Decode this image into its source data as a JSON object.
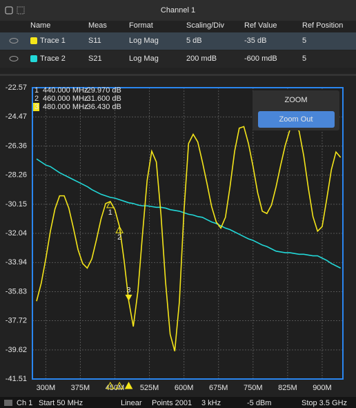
{
  "header": {
    "title": "Channel 1"
  },
  "table": {
    "columns": [
      "Name",
      "Meas",
      "Format",
      "Scaling/Div",
      "Ref Value",
      "Ref Position"
    ],
    "rows": [
      {
        "color": "#f5e61a",
        "selected": true,
        "cells": [
          "Trace 1",
          "S11",
          "Log Mag",
          "5 dB",
          "-35 dB",
          "5"
        ]
      },
      {
        "color": "#22d8d8",
        "selected": false,
        "cells": [
          "Trace 2",
          "S21",
          "Log Mag",
          "200 mdB",
          "-600 mdB",
          "5"
        ]
      }
    ]
  },
  "chart_data": {
    "type": "line",
    "x": [
      280000000,
      290000000,
      300000000,
      310000000,
      320000000,
      330000000,
      340000000,
      350000000,
      360000000,
      370000000,
      380000000,
      390000000,
      400000000,
      410000000,
      420000000,
      430000000,
      440000000,
      450000000,
      460000000,
      470000000,
      480000000,
      490000000,
      500000000,
      510000000,
      520000000,
      530000000,
      540000000,
      550000000,
      560000000,
      570000000,
      580000000,
      590000000,
      600000000,
      610000000,
      620000000,
      630000000,
      640000000,
      650000000,
      660000000,
      670000000,
      680000000,
      690000000,
      700000000,
      710000000,
      720000000,
      730000000,
      740000000,
      750000000,
      760000000,
      770000000,
      780000000,
      790000000,
      800000000,
      810000000,
      820000000,
      830000000,
      840000000,
      850000000,
      860000000,
      870000000,
      880000000,
      890000000,
      900000000,
      910000000,
      920000000,
      930000000,
      940000000
    ],
    "series": [
      {
        "color": "#f5e61a",
        "values": [
          -36.45,
          -35.3,
          -33.7,
          -31.9,
          -30.45,
          -29.6,
          -29.6,
          -30.4,
          -31.7,
          -33.1,
          -34.0,
          -34.3,
          -33.7,
          -32.45,
          -31.1,
          -30.1,
          -29.97,
          -30.5,
          -31.6,
          -33.8,
          -36.43,
          -38.1,
          -35.8,
          -32.1,
          -28.6,
          -26.7,
          -27.4,
          -30.8,
          -35.2,
          -38.6,
          -39.7,
          -36.5,
          -30.6,
          -26.2,
          -25.6,
          -26.1,
          -27.4,
          -28.8,
          -30.3,
          -31.3,
          -31.7,
          -31.0,
          -29.0,
          -26.7,
          -25.2,
          -25.1,
          -26.2,
          -27.7,
          -29.4,
          -30.6,
          -30.75,
          -30.2,
          -29.0,
          -27.6,
          -26.3,
          -25.3,
          -25.0,
          -25.4,
          -27.0,
          -29.1,
          -30.95,
          -31.9,
          -31.6,
          -29.8,
          -27.9,
          -26.75,
          -27.1
        ]
      },
      {
        "color": "#22d8d8",
        "values": [
          -27.2,
          -27.4,
          -27.6,
          -27.7,
          -27.9,
          -28.1,
          -28.25,
          -28.4,
          -28.55,
          -28.7,
          -28.85,
          -29.0,
          -29.2,
          -29.35,
          -29.5,
          -29.6,
          -29.7,
          -29.75,
          -29.85,
          -29.95,
          -30.05,
          -30.1,
          -30.2,
          -30.25,
          -30.25,
          -30.3,
          -30.35,
          -30.35,
          -30.4,
          -30.5,
          -30.55,
          -30.6,
          -30.7,
          -30.8,
          -30.85,
          -30.95,
          -31.0,
          -31.15,
          -31.3,
          -31.4,
          -31.55,
          -31.7,
          -31.8,
          -31.95,
          -32.1,
          -32.25,
          -32.4,
          -32.5,
          -32.65,
          -32.8,
          -32.9,
          -33.05,
          -33.2,
          -33.25,
          -33.3,
          -33.3,
          -33.35,
          -33.4,
          -33.4,
          -33.45,
          -33.5,
          -33.5,
          -33.65,
          -33.8,
          -34.0,
          -34.15,
          -34.3
        ]
      }
    ],
    "xlim": [
      271000000,
      945000000
    ],
    "xticks": [
      {
        "value": 300000000,
        "label": "300M"
      },
      {
        "value": 375000000,
        "label": "375M"
      },
      {
        "value": 450000000,
        "label": "450M"
      },
      {
        "value": 525000000,
        "label": "525M"
      },
      {
        "value": 600000000,
        "label": "600M"
      },
      {
        "value": 675000000,
        "label": "675M"
      },
      {
        "value": 750000000,
        "label": "750M"
      },
      {
        "value": 825000000,
        "label": "825M"
      },
      {
        "value": 900000000,
        "label": "900M"
      }
    ],
    "ylim": [
      -41.51,
      -22.57
    ],
    "yticks": [
      -22.57,
      -24.47,
      -26.36,
      -28.26,
      -30.15,
      -32.04,
      -33.94,
      -35.83,
      -37.72,
      -39.62,
      -41.51
    ],
    "grid": true,
    "markers": [
      {
        "number": "1",
        "x": 440000000,
        "x_label": "440.000 MHz",
        "value": -29.97,
        "value_label": "-29.970 dB",
        "active": false
      },
      {
        "number": "2",
        "x": 460000000,
        "x_label": "460.000 MHz",
        "value": -31.6,
        "value_label": "-31.600 dB",
        "active": false
      },
      {
        "number": "3",
        "x": 480000000,
        "x_label": "480.000 MHz",
        "value": -36.43,
        "value_label": "-36.430 dB",
        "active": true
      }
    ]
  },
  "zoom": {
    "title": "ZOOM",
    "button": "Zoom Out"
  },
  "status": [
    "Ch 1",
    "Start 50 MHz",
    "Linear",
    "Points 2001",
    "3 kHz",
    "-5 dBm",
    "Stop 3.5 GHz"
  ]
}
